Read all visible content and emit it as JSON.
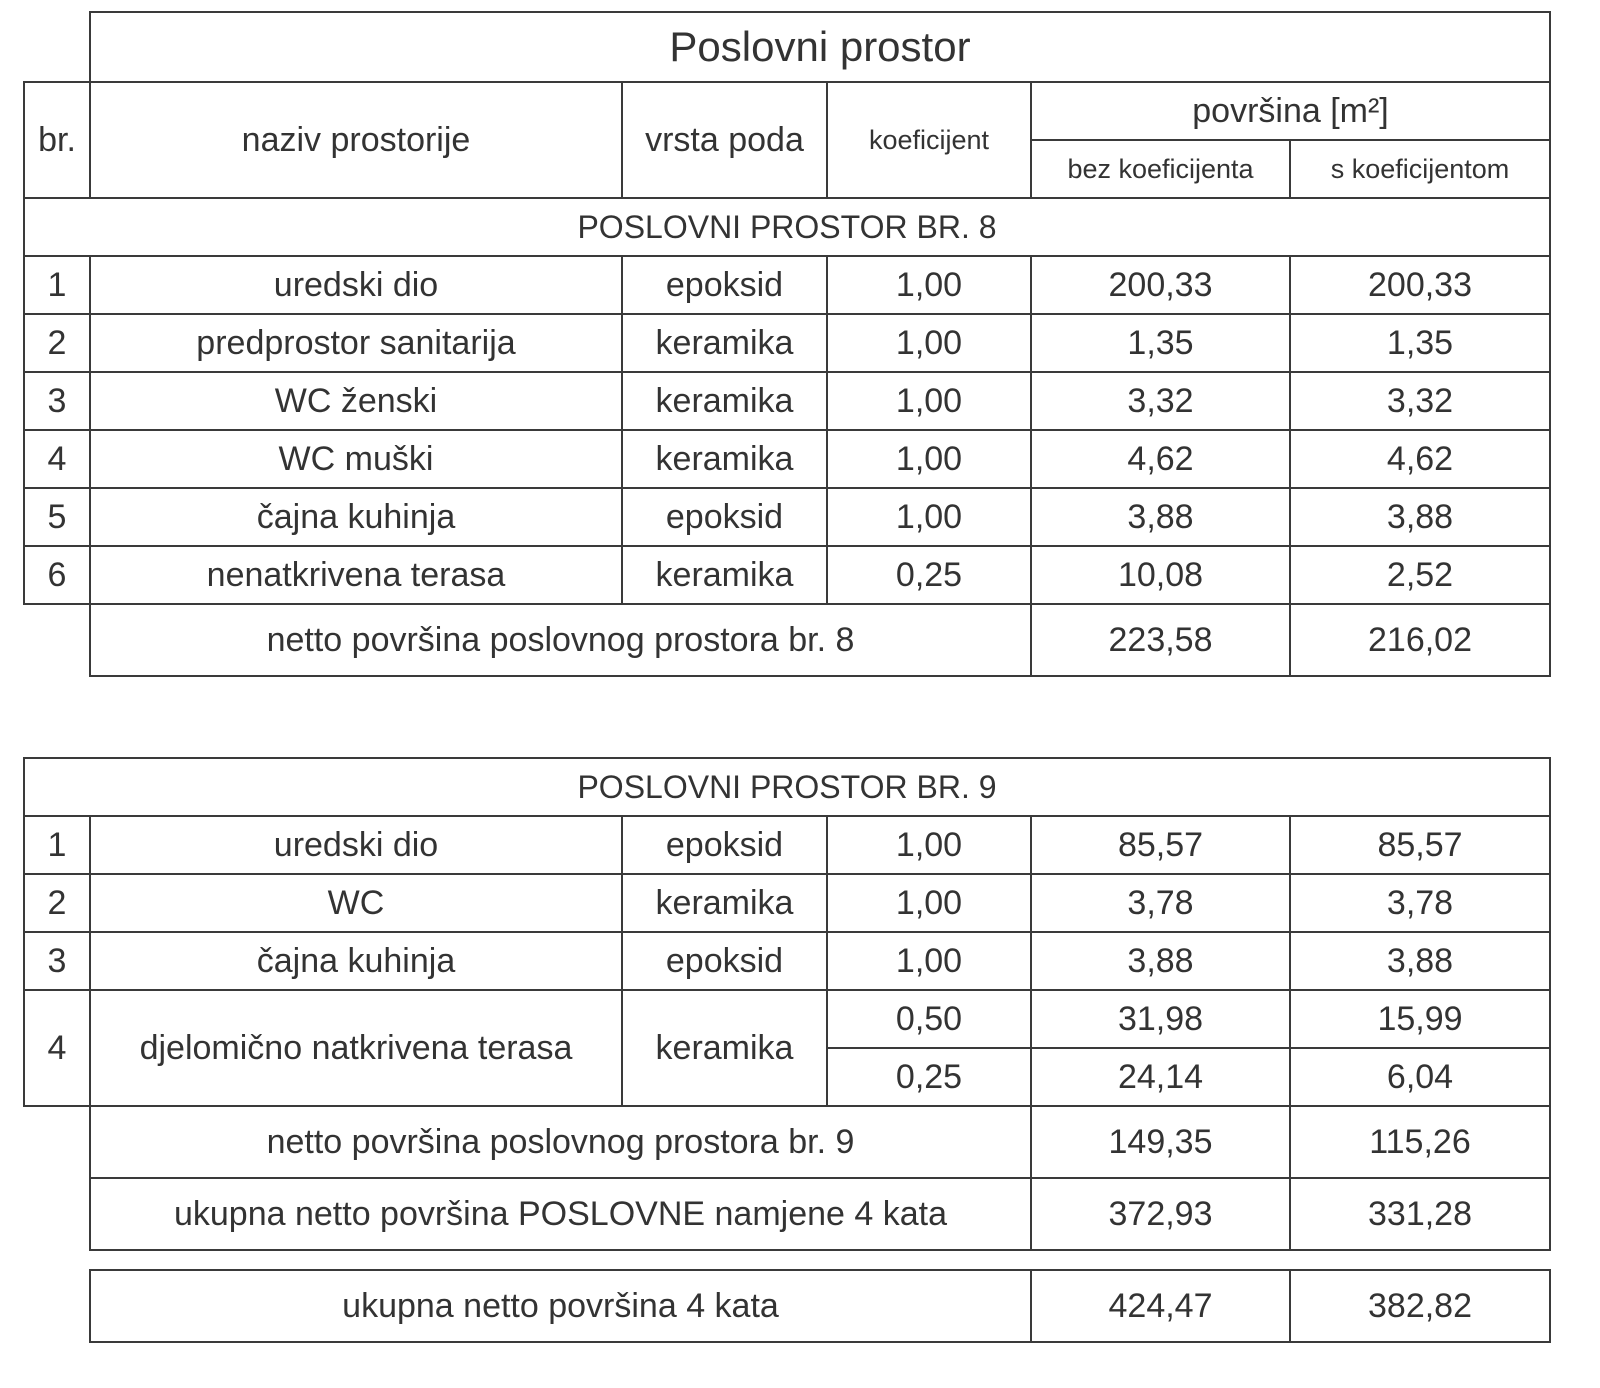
{
  "title": "Poslovni prostor",
  "headers": {
    "br": "br.",
    "naziv": "naziv prostorije",
    "vrsta": "vrsta poda",
    "koef": "koeficijent",
    "povrsina": "površina [m²]",
    "bez": "bez koeficijenta",
    "s": "s koeficijentom"
  },
  "sections": [
    {
      "title": "POSLOVNI PROSTOR BR. 8",
      "rows": [
        {
          "br": "1",
          "naziv": "uredski dio",
          "vrsta": "epoksid",
          "koef": [
            "1,00"
          ],
          "bez": [
            "200,33"
          ],
          "s": [
            "200,33"
          ]
        },
        {
          "br": "2",
          "naziv": "predprostor sanitarija",
          "vrsta": "keramika",
          "koef": [
            "1,00"
          ],
          "bez": [
            "1,35"
          ],
          "s": [
            "1,35"
          ]
        },
        {
          "br": "3",
          "naziv": "WC ženski",
          "vrsta": "keramika",
          "koef": [
            "1,00"
          ],
          "bez": [
            "3,32"
          ],
          "s": [
            "3,32"
          ]
        },
        {
          "br": "4",
          "naziv": "WC muški",
          "vrsta": "keramika",
          "koef": [
            "1,00"
          ],
          "bez": [
            "4,62"
          ],
          "s": [
            "4,62"
          ]
        },
        {
          "br": "5",
          "naziv": "čajna kuhinja",
          "vrsta": "epoksid",
          "koef": [
            "1,00"
          ],
          "bez": [
            "3,88"
          ],
          "s": [
            "3,88"
          ]
        },
        {
          "br": "6",
          "naziv": "nenatkrivena terasa",
          "vrsta": "keramika",
          "koef": [
            "0,25"
          ],
          "bez": [
            "10,08"
          ],
          "s": [
            "2,52"
          ]
        }
      ],
      "totals": [
        {
          "label": "netto površina poslovnog prostora br. 8",
          "bez": "223,58",
          "s": "216,02"
        }
      ]
    },
    {
      "title": "POSLOVNI PROSTOR BR. 9",
      "rows": [
        {
          "br": "1",
          "naziv": "uredski dio",
          "vrsta": "epoksid",
          "koef": [
            "1,00"
          ],
          "bez": [
            "85,57"
          ],
          "s": [
            "85,57"
          ]
        },
        {
          "br": "2",
          "naziv": "WC",
          "vrsta": "keramika",
          "koef": [
            "1,00"
          ],
          "bez": [
            "3,78"
          ],
          "s": [
            "3,78"
          ]
        },
        {
          "br": "3",
          "naziv": "čajna kuhinja",
          "vrsta": "epoksid",
          "koef": [
            "1,00"
          ],
          "bez": [
            "3,88"
          ],
          "s": [
            "3,88"
          ]
        },
        {
          "br": "4",
          "naziv": "djelomično natkrivena terasa",
          "vrsta": "keramika",
          "koef": [
            "0,50",
            "0,25"
          ],
          "bez": [
            "31,98",
            "24,14"
          ],
          "s": [
            "15,99",
            "6,04"
          ]
        }
      ],
      "totals": [
        {
          "label": "netto površina poslovnog prostora br. 9",
          "bez": "149,35",
          "s": "115,26"
        },
        {
          "label": "ukupna netto površina POSLOVNE namjene 4 kata",
          "bez": "372,93",
          "s": "331,28"
        }
      ]
    }
  ],
  "grand_total": {
    "label": "ukupna netto površina 4 kata",
    "bez": "424,47",
    "s": "382,82"
  }
}
